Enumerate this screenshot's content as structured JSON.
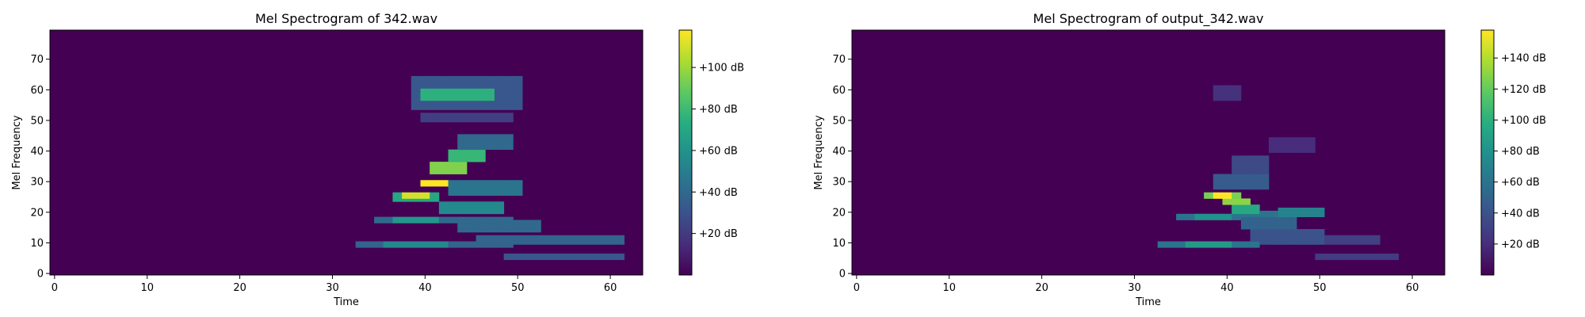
{
  "chart_data": [
    {
      "type": "heatmap",
      "title": "Mel Spectrogram of 342.wav",
      "xlabel": "Time",
      "ylabel": "Mel Frequency",
      "xlim": [
        -0.5,
        63.5
      ],
      "ylim": [
        -0.5,
        79.5
      ],
      "x_ticks": [
        0,
        10,
        20,
        30,
        40,
        50,
        60
      ],
      "y_ticks": [
        0,
        10,
        20,
        30,
        40,
        50,
        60,
        70
      ],
      "colormap": "viridis",
      "colorbar": {
        "vmin": 0,
        "vmax": 118,
        "ticks": [
          20,
          40,
          60,
          80,
          100
        ],
        "tick_labels": [
          "+20 dB",
          "+40 dB",
          "+60 dB",
          "+80 dB",
          "+100 dB"
        ]
      },
      "blobs": [
        {
          "x0": 33,
          "x1": 49,
          "y0": 9,
          "y1": 10,
          "v": 38
        },
        {
          "x0": 36,
          "x1": 42,
          "y0": 9,
          "y1": 10,
          "v": 55
        },
        {
          "x0": 35,
          "x1": 49,
          "y0": 17,
          "y1": 18,
          "v": 40
        },
        {
          "x0": 37,
          "x1": 41,
          "y0": 17,
          "y1": 18,
          "v": 62
        },
        {
          "x0": 37,
          "x1": 41,
          "y0": 24,
          "y1": 26,
          "v": 70
        },
        {
          "x0": 38,
          "x1": 40,
          "y0": 25,
          "y1": 26,
          "v": 110
        },
        {
          "x0": 40,
          "x1": 42,
          "y0": 29,
          "y1": 30,
          "v": 118
        },
        {
          "x0": 41,
          "x1": 44,
          "y0": 33,
          "y1": 36,
          "v": 95
        },
        {
          "x0": 43,
          "x1": 46,
          "y0": 37,
          "y1": 40,
          "v": 78
        },
        {
          "x0": 44,
          "x1": 49,
          "y0": 41,
          "y1": 45,
          "v": 40
        },
        {
          "x0": 40,
          "x1": 47,
          "y0": 57,
          "y1": 60,
          "v": 75
        },
        {
          "x0": 39,
          "x1": 50,
          "y0": 54,
          "y1": 64,
          "v": 32
        },
        {
          "x0": 40,
          "x1": 49,
          "y0": 50,
          "y1": 52,
          "v": 22
        },
        {
          "x0": 42,
          "x1": 48,
          "y0": 20,
          "y1": 23,
          "v": 55
        },
        {
          "x0": 44,
          "x1": 52,
          "y0": 14,
          "y1": 17,
          "v": 40
        },
        {
          "x0": 46,
          "x1": 61,
          "y0": 10,
          "y1": 12,
          "v": 38
        },
        {
          "x0": 49,
          "x1": 61,
          "y0": 5,
          "y1": 6,
          "v": 32
        },
        {
          "x0": 43,
          "x1": 50,
          "y0": 26,
          "y1": 30,
          "v": 45
        }
      ]
    },
    {
      "type": "heatmap",
      "title": "Mel Spectrogram of output_342.wav",
      "xlabel": "Time",
      "ylabel": "Mel Frequency",
      "xlim": [
        -0.5,
        63.5
      ],
      "ylim": [
        -0.5,
        79.5
      ],
      "x_ticks": [
        0,
        10,
        20,
        30,
        40,
        50,
        60
      ],
      "y_ticks": [
        0,
        10,
        20,
        30,
        40,
        50,
        60,
        70
      ],
      "colormap": "viridis",
      "colorbar": {
        "vmin": 0,
        "vmax": 158,
        "ticks": [
          20,
          40,
          60,
          80,
          100,
          120,
          140
        ],
        "tick_labels": [
          "+20 dB",
          "+40 dB",
          "+60 dB",
          "+80 dB",
          "+100 dB",
          "+120 dB",
          "+140 dB"
        ]
      },
      "blobs": [
        {
          "x0": 33,
          "x1": 43,
          "y0": 9,
          "y1": 10,
          "v": 60
        },
        {
          "x0": 36,
          "x1": 40,
          "y0": 9,
          "y1": 10,
          "v": 85
        },
        {
          "x0": 35,
          "x1": 41,
          "y0": 18,
          "y1": 19,
          "v": 60
        },
        {
          "x0": 37,
          "x1": 40,
          "y0": 18,
          "y1": 19,
          "v": 80
        },
        {
          "x0": 38,
          "x1": 41,
          "y0": 25,
          "y1": 26,
          "v": 125
        },
        {
          "x0": 39,
          "x1": 40,
          "y0": 25,
          "y1": 26,
          "v": 158
        },
        {
          "x0": 40,
          "x1": 42,
          "y0": 23,
          "y1": 24,
          "v": 130
        },
        {
          "x0": 41,
          "x1": 43,
          "y0": 20,
          "y1": 22,
          "v": 95
        },
        {
          "x0": 42,
          "x1": 48,
          "y0": 19,
          "y1": 20,
          "v": 60
        },
        {
          "x0": 46,
          "x1": 50,
          "y0": 19,
          "y1": 21,
          "v": 70
        },
        {
          "x0": 39,
          "x1": 44,
          "y0": 28,
          "y1": 32,
          "v": 45
        },
        {
          "x0": 41,
          "x1": 44,
          "y0": 32,
          "y1": 38,
          "v": 35
        },
        {
          "x0": 45,
          "x1": 49,
          "y0": 40,
          "y1": 44,
          "v": 20
        },
        {
          "x0": 39,
          "x1": 41,
          "y0": 57,
          "y1": 61,
          "v": 22
        },
        {
          "x0": 43,
          "x1": 50,
          "y0": 10,
          "y1": 14,
          "v": 40
        },
        {
          "x0": 47,
          "x1": 56,
          "y0": 10,
          "y1": 12,
          "v": 30
        },
        {
          "x0": 50,
          "x1": 58,
          "y0": 5,
          "y1": 6,
          "v": 28
        },
        {
          "x0": 42,
          "x1": 47,
          "y0": 15,
          "y1": 18,
          "v": 50
        }
      ]
    }
  ]
}
